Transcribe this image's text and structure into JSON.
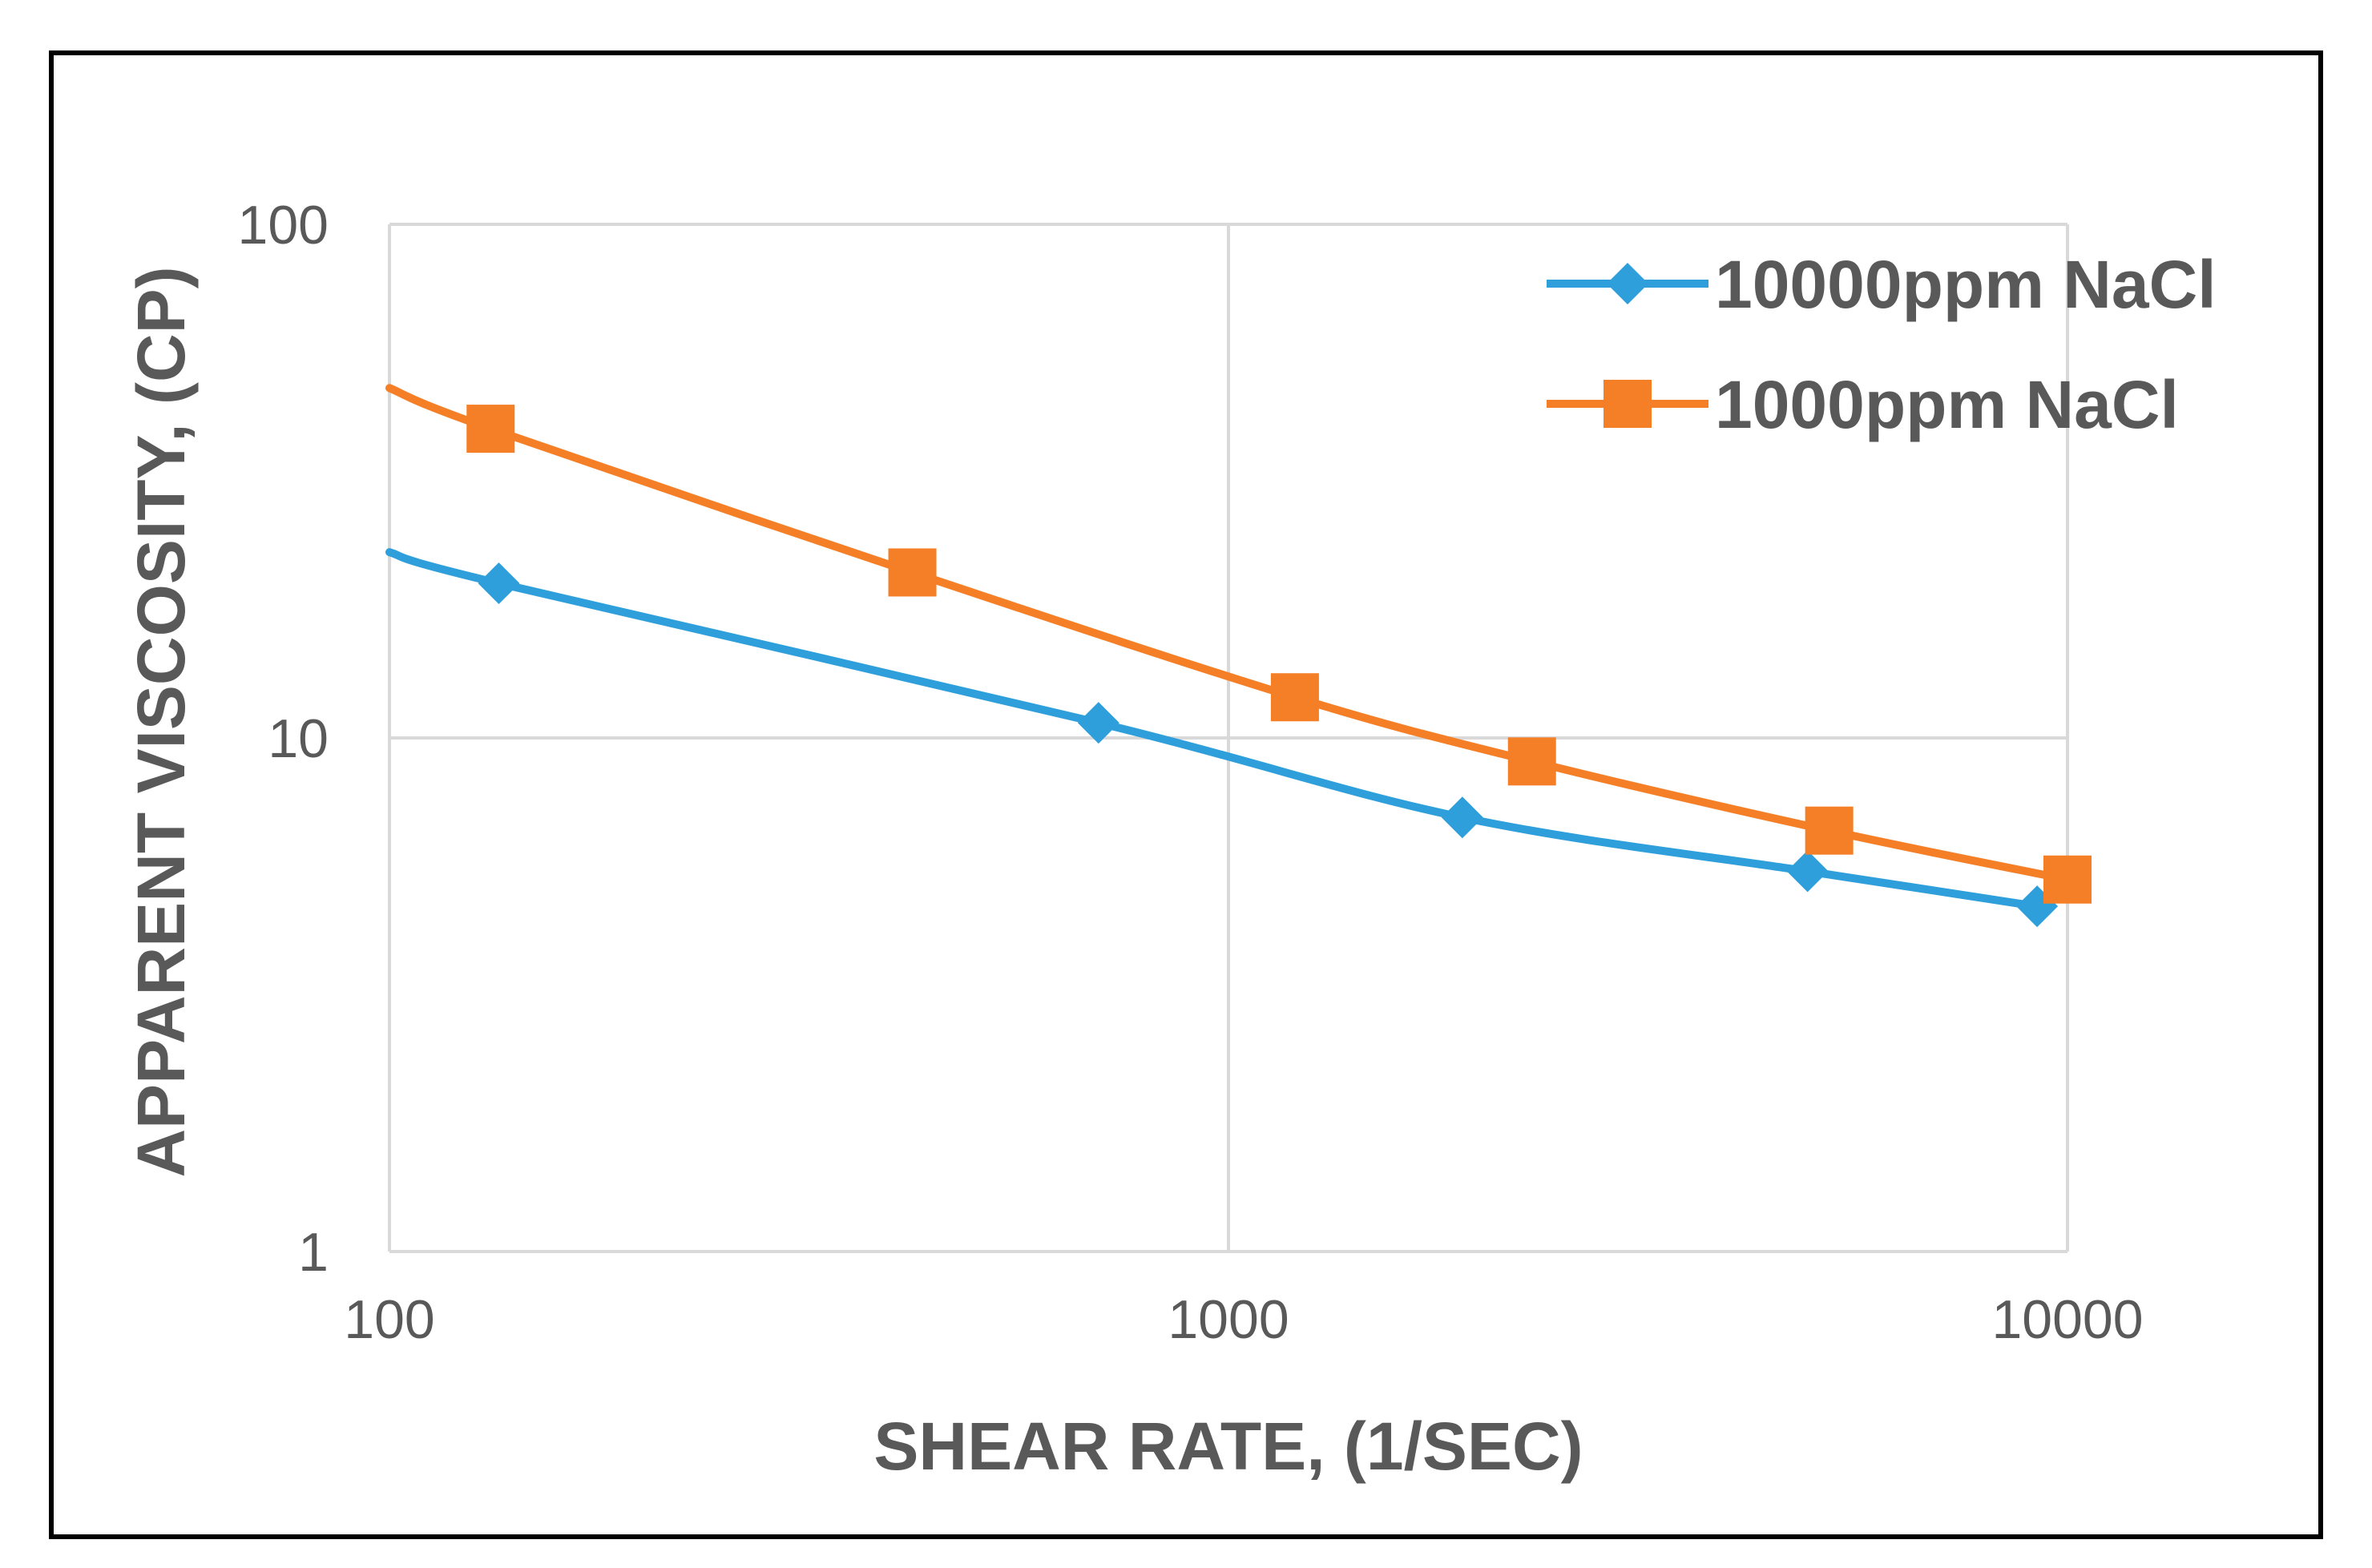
{
  "chart_data": {
    "type": "line",
    "title": "",
    "xlabel": "SHEAR RATE, (1/SEC)",
    "ylabel": "APPARENT VISCOSITY,  (CP)",
    "xscale": "log",
    "yscale": "log",
    "xlim": [
      100,
      10000
    ],
    "ylim": [
      1,
      100
    ],
    "x_ticks": [
      "100",
      "1000",
      "10000"
    ],
    "y_ticks": [
      "1",
      "10",
      "100"
    ],
    "grid": true,
    "legend_position": "top-right",
    "series": [
      {
        "name": "10000ppm NaCl",
        "color": "#2E9FDB",
        "marker": "diamond",
        "x": [
          100,
          135,
          700,
          1900,
          4900,
          9200
        ],
        "y": [
          23,
          20,
          10.7,
          7.0,
          5.5,
          4.7
        ]
      },
      {
        "name": "1000ppm NaCl",
        "color": "#F57F27",
        "marker": "square",
        "x": [
          100,
          132,
          420,
          1200,
          2300,
          5200,
          10000
        ],
        "y": [
          48,
          40,
          21,
          12,
          9,
          6.6,
          5.3
        ]
      }
    ]
  }
}
